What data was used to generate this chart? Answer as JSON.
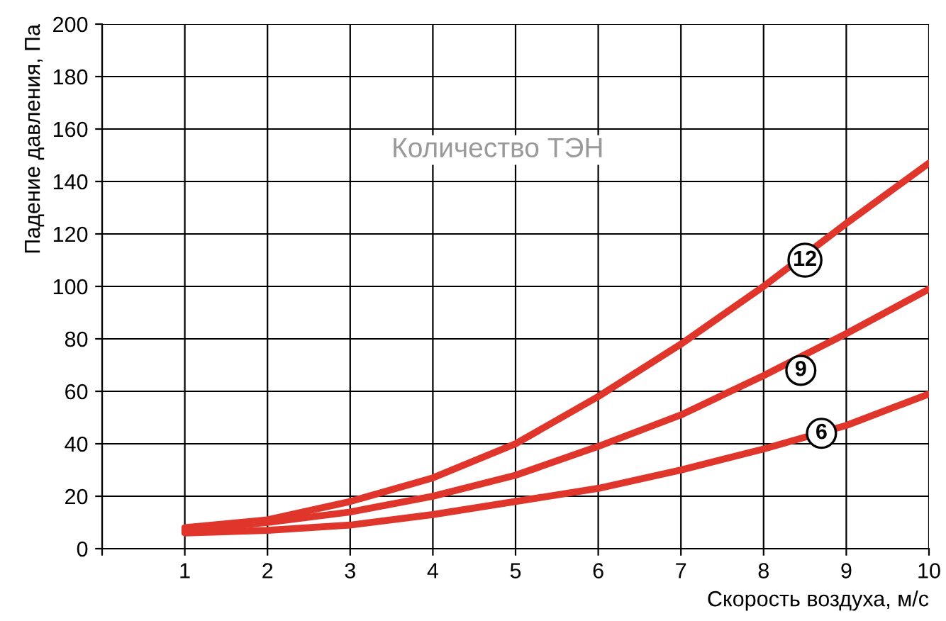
{
  "chart_data": {
    "type": "line",
    "xlabel": "Скорость воздуха, м/с",
    "ylabel": "Падение давления, Па",
    "x": [
      1,
      2,
      3,
      4,
      5,
      6,
      7,
      8,
      9,
      10
    ],
    "series": [
      {
        "color": "#e0352b",
        "values": [
          8,
          11,
          18,
          27,
          40,
          58,
          78,
          100,
          124,
          147
        ]
      },
      {
        "color": "#e0352b",
        "values": [
          7,
          10,
          14,
          20,
          28,
          39,
          51,
          66,
          82,
          99
        ]
      },
      {
        "color": "#e0352b",
        "values": [
          6,
          7,
          9,
          13,
          18,
          23,
          30,
          38,
          47,
          59
        ]
      }
    ],
    "xlim": [
      0,
      10
    ],
    "ylim": [
      0,
      200
    ],
    "xticks": [
      {
        "value": 0,
        "label": null
      },
      1,
      2,
      3,
      4,
      5,
      6,
      7,
      8,
      9,
      10
    ],
    "yticks": [
      0,
      20,
      40,
      60,
      80,
      100,
      120,
      140,
      160,
      180,
      200
    ],
    "grid": true,
    "legend": false,
    "marker": "none",
    "line_style": "solid",
    "annotations": [
      {
        "text": "12",
        "x": 8.5,
        "y": 110
      },
      {
        "text": "9",
        "x": 8.45,
        "y": 68
      },
      {
        "text": "6",
        "x": 8.7,
        "y": 44
      },
      "Количество ТЭН"
    ]
  }
}
